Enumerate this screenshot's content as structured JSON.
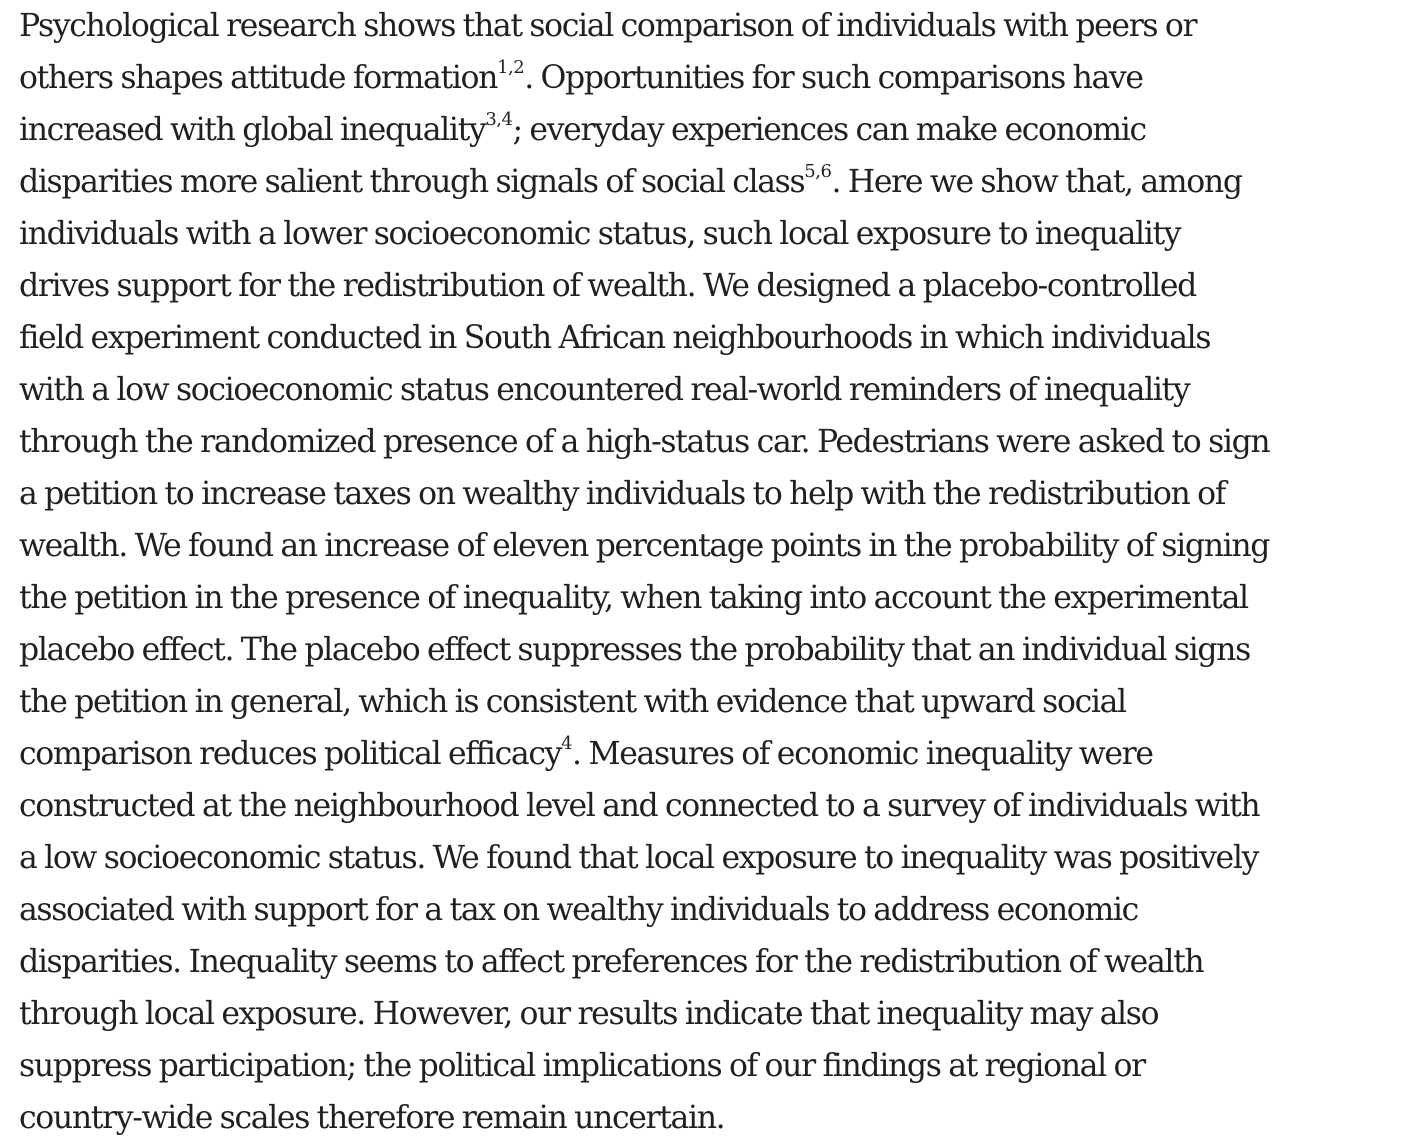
{
  "abstract": {
    "lines": [
      [
        {
          "t": "Psychological research shows that social comparison of individuals with peers or"
        }
      ],
      [
        {
          "t": "others shapes attitude formation"
        },
        {
          "t": "1,2",
          "sup": true
        },
        {
          "t": ". Opportunities for such comparisons have"
        }
      ],
      [
        {
          "t": "increased with global inequality"
        },
        {
          "t": "3,4",
          "sup": true
        },
        {
          "t": "; everyday experiences can make economic"
        }
      ],
      [
        {
          "t": "disparities more salient through signals of social class"
        },
        {
          "t": "5,6",
          "sup": true
        },
        {
          "t": ". Here we show that, among"
        }
      ],
      [
        {
          "t": "individuals with a lower socioeconomic status, such local exposure to inequality"
        }
      ],
      [
        {
          "t": "drives support for the redistribution of wealth. We designed a placebo-controlled"
        }
      ],
      [
        {
          "t": "field experiment conducted in South African neighbourhoods in which individuals"
        }
      ],
      [
        {
          "t": "with a low socioeconomic status encountered real-world reminders of inequality"
        }
      ],
      [
        {
          "t": "through the randomized presence of a high-status car. Pedestrians were asked to sign"
        }
      ],
      [
        {
          "t": "a petition to increase taxes on wealthy individuals to help with the redistribution of"
        }
      ],
      [
        {
          "t": "wealth. We found an increase of eleven percentage points in the probability of signing"
        }
      ],
      [
        {
          "t": "the petition in the presence of inequality, when taking into account the experimental"
        }
      ],
      [
        {
          "t": "placebo effect. The placebo effect suppresses the probability that an individual signs"
        }
      ],
      [
        {
          "t": "the petition in general, which is consistent with evidence that upward social"
        }
      ],
      [
        {
          "t": "comparison reduces political efficacy"
        },
        {
          "t": "4",
          "sup": true
        },
        {
          "t": ". Measures of economic inequality were"
        }
      ],
      [
        {
          "t": "constructed at the neighbourhood level and connected to a survey of individuals with"
        }
      ],
      [
        {
          "t": "a low socioeconomic status. We found that local exposure to inequality was positively"
        }
      ],
      [
        {
          "t": "associated with support for a tax on wealthy individuals to address economic"
        }
      ],
      [
        {
          "t": "disparities. Inequality seems to affect preferences for the redistribution of wealth"
        }
      ],
      [
        {
          "t": "through local exposure. However, our results indicate that inequality may also"
        }
      ],
      [
        {
          "t": "suppress participation; the political implications of our findings at regional or"
        }
      ],
      [
        {
          "t": "country-wide scales therefore remain uncertain."
        }
      ]
    ]
  }
}
